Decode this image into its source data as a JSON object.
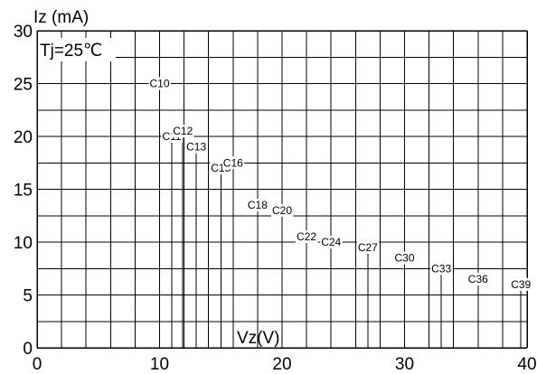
{
  "chart_data": {
    "type": "line",
    "ylabel": "Iz (mA)",
    "xlabel": "Vz(V)",
    "condition": "Tj=25℃",
    "xlim": [
      0,
      40
    ],
    "ylim": [
      0,
      30
    ],
    "x_ticks": [
      "0",
      "10",
      "20",
      "30",
      "40"
    ],
    "y_ticks": [
      "0",
      "5",
      "10",
      "15",
      "20",
      "25",
      "30"
    ],
    "grid": true,
    "series": [
      {
        "name": "C10",
        "x": [
          10.0,
          10.0
        ],
        "y": [
          0,
          25.0
        ]
      },
      {
        "name": "C11",
        "x": [
          11.0,
          11.0
        ],
        "y": [
          0,
          20.0
        ]
      },
      {
        "name": "C12",
        "x": [
          11.9,
          11.9
        ],
        "y": [
          0,
          20.5
        ]
      },
      {
        "name": "C13",
        "x": [
          13.0,
          13.0
        ],
        "y": [
          0,
          19.0
        ]
      },
      {
        "name": "C15",
        "x": [
          15.0,
          15.0
        ],
        "y": [
          0,
          17.0
        ]
      },
      {
        "name": "C16",
        "x": [
          16.0,
          16.0
        ],
        "y": [
          0,
          17.5
        ]
      },
      {
        "name": "C18",
        "x": [
          18.0,
          18.0
        ],
        "y": [
          0,
          13.5
        ]
      },
      {
        "name": "C20",
        "x": [
          20.0,
          20.0
        ],
        "y": [
          0,
          13.0
        ]
      },
      {
        "name": "C22",
        "x": [
          22.0,
          22.0
        ],
        "y": [
          0,
          10.5
        ]
      },
      {
        "name": "C24",
        "x": [
          24.0,
          24.0
        ],
        "y": [
          0,
          10.0
        ]
      },
      {
        "name": "C27",
        "x": [
          27.0,
          27.0
        ],
        "y": [
          0,
          9.5
        ]
      },
      {
        "name": "C30",
        "x": [
          30.0,
          30.0
        ],
        "y": [
          0,
          8.5
        ]
      },
      {
        "name": "C33",
        "x": [
          33.0,
          33.0
        ],
        "y": [
          0,
          7.5
        ]
      },
      {
        "name": "C36",
        "x": [
          36.0,
          36.0
        ],
        "y": [
          0,
          6.5
        ]
      },
      {
        "name": "C39",
        "x": [
          39.5,
          39.5
        ],
        "y": [
          0,
          6.0
        ]
      }
    ]
  }
}
